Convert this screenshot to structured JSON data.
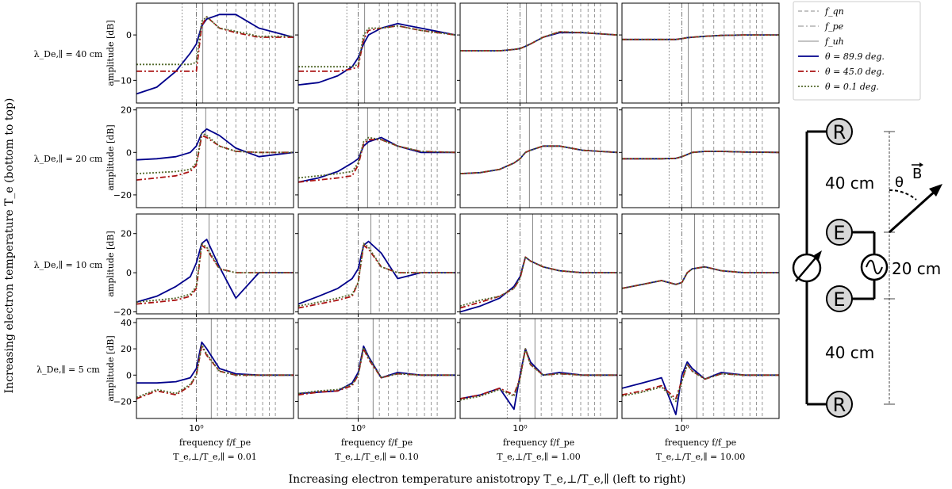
{
  "figure": {
    "left_label": "Increasing electron temperature T_e (bottom to top)",
    "bottom_label": "Increasing electron temperature anistotropy T_e,⊥/T_e,∥ (left to right)"
  },
  "axes": {
    "xlabel": "frequency f/f_pe",
    "ylabel": "amplitude [dB]",
    "xtick": "10^0",
    "xscale": "log",
    "xlim": [
      0.35,
      5.5
    ]
  },
  "columns": [
    {
      "label": "T_e,⊥/T_e,∥ = 0.01",
      "ratio": 0.01
    },
    {
      "label": "T_e,⊥/T_e,∥ = 0.10",
      "ratio": 0.1
    },
    {
      "label": "T_e,⊥/T_e,∥ = 1.00",
      "ratio": 1.0
    },
    {
      "label": "T_e,⊥/T_e,∥ = 10.00",
      "ratio": 10.0
    }
  ],
  "rows": [
    {
      "label": "λ_De,∥ = 40 cm",
      "ylim": [
        -15,
        7
      ],
      "yticks": [
        -10,
        0
      ]
    },
    {
      "label": "λ_De,∥ = 20 cm",
      "ylim": [
        -26,
        21
      ],
      "yticks": [
        -20,
        0,
        20
      ]
    },
    {
      "label": "λ_De,∥ = 10 cm",
      "ylim": [
        -21,
        30
      ],
      "yticks": [
        -20,
        0,
        20
      ]
    },
    {
      "label": "λ_De,∥ = 5 cm",
      "ylim": [
        -33,
        43
      ],
      "yticks": [
        -20,
        0,
        20,
        40
      ]
    }
  ],
  "legend": [
    {
      "label": "f_qn",
      "style": "dashed",
      "color": "#888888"
    },
    {
      "label": "f_pe",
      "style": "dashdot",
      "color": "#888888"
    },
    {
      "label": "f_uh",
      "style": "solid",
      "color": "#888888"
    },
    {
      "label": "θ = 89.9 deg.",
      "style": "solid",
      "color": "#00008b"
    },
    {
      "label": "θ = 45.0 deg.",
      "style": "dashdot",
      "color": "#aa1111"
    },
    {
      "label": "θ = 0.1 deg.",
      "style": "dotted",
      "color": "#556b2f"
    }
  ],
  "diagram": {
    "probe_r": "R",
    "probe_e": "E",
    "dist_outer_top": "40 cm",
    "dist_inner": "20 cm",
    "dist_outer_bottom": "40 cm",
    "angle": "θ",
    "field": "B"
  },
  "chart_data": {
    "type": "line",
    "title": "",
    "xlabel": "frequency f/f_pe",
    "ylabel": "amplitude [dB]",
    "xscale": "log",
    "grid": false,
    "reference_lines": {
      "f_pe": 1.0,
      "f_qn_column1": [
        0.78,
        1.45,
        1.7,
        2.0,
        2.4,
        2.8,
        3.2,
        3.6,
        4.0
      ],
      "f_qn_column2": [
        0.82,
        1.45,
        1.7,
        2.0,
        2.4,
        2.8,
        3.2,
        3.6,
        4.0
      ],
      "f_qn_column3": [
        0.8,
        1.45,
        1.75,
        2.1,
        2.5,
        2.9,
        3.3,
        3.7,
        4.1
      ],
      "f_qn_column4": [
        0.8,
        1.45,
        1.75,
        2.1,
        2.5,
        2.9,
        3.3,
        3.7,
        4.1
      ],
      "f_uh_row_40cm": 1.12,
      "f_uh_row_20cm": 1.18,
      "f_uh_row_10cm": 1.25,
      "f_uh_row_5cm": 1.3
    },
    "x": [
      0.35,
      0.5,
      0.7,
      0.9,
      1.0,
      1.1,
      1.2,
      1.5,
      2.0,
      3.0,
      5.5
    ],
    "panels": [
      {
        "row": "λ_De,∥ = 40 cm",
        "column": "T_e,⊥/T_e,∥ = 0.01",
        "series": [
          {
            "name": "θ = 89.9 deg.",
            "values": [
              -13,
              -11.5,
              -8,
              -4,
              -2,
              2,
              3.5,
              4.5,
              4.5,
              1.5,
              -0.5
            ]
          },
          {
            "name": "θ = 45.0 deg.",
            "values": [
              -8,
              -8,
              -8,
              -8,
              -8,
              2,
              4,
              1.5,
              0.5,
              -0.5,
              -0.5
            ]
          },
          {
            "name": "θ = 0.1 deg.",
            "values": [
              -6.5,
              -6.5,
              -6.5,
              -6.5,
              -6,
              3,
              4,
              1.5,
              0.8,
              -0.3,
              -0.3
            ]
          }
        ]
      },
      {
        "row": "λ_De,∥ = 40 cm",
        "column": "T_e,⊥/T_e,∥ = 0.10",
        "series": [
          {
            "name": "θ = 89.9 deg.",
            "values": [
              -11,
              -10.5,
              -9,
              -7,
              -5,
              -2,
              0,
              1.5,
              2.5,
              1.5,
              0
            ]
          },
          {
            "name": "θ = 45.0 deg.",
            "values": [
              -8,
              -8,
              -8,
              -7.5,
              -7,
              -1,
              1,
              1.5,
              2,
              1,
              0
            ]
          },
          {
            "name": "θ = 0.1 deg.",
            "values": [
              -7,
              -7,
              -7,
              -7,
              -6.5,
              0,
              1.5,
              1.5,
              2,
              1,
              0
            ]
          }
        ]
      },
      {
        "row": "λ_De,∥ = 40 cm",
        "column": "T_e,⊥/T_e,∥ = 1.00",
        "series": [
          {
            "name": "θ = 89.9 deg.",
            "values": [
              -3.5,
              -3.5,
              -3.5,
              -3.2,
              -3,
              -2.5,
              -2,
              -0.5,
              0.5,
              0.5,
              0
            ]
          },
          {
            "name": "θ = 45.0 deg.",
            "values": [
              -3.5,
              -3.5,
              -3.5,
              -3.2,
              -3,
              -2.5,
              -2,
              -0.5,
              0.7,
              0.5,
              0
            ]
          },
          {
            "name": "θ = 0.1 deg.",
            "values": [
              -3.5,
              -3.5,
              -3.5,
              -3.2,
              -3,
              -2.5,
              -2,
              -0.5,
              0.7,
              0.5,
              0
            ]
          }
        ]
      },
      {
        "row": "λ_De,∥ = 40 cm",
        "column": "T_e,⊥/T_e,∥ = 10.00",
        "series": [
          {
            "name": "θ = 89.9 deg.",
            "values": [
              -1,
              -1,
              -1,
              -1,
              -0.8,
              -0.6,
              -0.5,
              -0.3,
              -0.1,
              0,
              0
            ]
          },
          {
            "name": "θ = 45.0 deg.",
            "values": [
              -1,
              -1,
              -1,
              -1,
              -0.8,
              -0.6,
              -0.5,
              -0.3,
              -0.1,
              0,
              0
            ]
          },
          {
            "name": "θ = 0.1 deg.",
            "values": [
              -1,
              -1,
              -1,
              -1,
              -0.8,
              -0.6,
              -0.5,
              -0.3,
              -0.1,
              0,
              0
            ]
          }
        ]
      },
      {
        "row": "λ_De,∥ = 20 cm",
        "column": "T_e,⊥/T_e,∥ = 0.01",
        "series": [
          {
            "name": "θ = 89.9 deg.",
            "values": [
              -3.5,
              -3,
              -2,
              0,
              3,
              9,
              11,
              8,
              2,
              -2,
              0
            ]
          },
          {
            "name": "θ = 45.0 deg.",
            "values": [
              -13,
              -12,
              -11,
              -9,
              -6,
              8,
              7,
              3,
              0.5,
              0,
              0
            ]
          },
          {
            "name": "θ = 0.1 deg.",
            "values": [
              -10,
              -9.5,
              -9,
              -8,
              -5,
              9,
              8,
              3,
              0.5,
              0,
              0
            ]
          }
        ]
      },
      {
        "row": "λ_De,∥ = 20 cm",
        "column": "T_e,⊥/T_e,∥ = 0.10",
        "series": [
          {
            "name": "θ = 89.9 deg.",
            "values": [
              -14,
              -12,
              -9,
              -5,
              -3,
              3,
              5,
              7,
              3,
              0,
              0
            ]
          },
          {
            "name": "θ = 45.0 deg.",
            "values": [
              -14,
              -13,
              -12,
              -11,
              -6,
              4,
              6,
              6,
              3,
              0.5,
              0
            ]
          },
          {
            "name": "θ = 0.1 deg.",
            "values": [
              -12,
              -11,
              -10,
              -9,
              -5,
              5,
              7,
              6,
              3,
              0.5,
              0
            ]
          }
        ]
      },
      {
        "row": "λ_De,∥ = 20 cm",
        "column": "T_e,⊥/T_e,∥ = 1.00",
        "series": [
          {
            "name": "θ = 89.9 deg.",
            "values": [
              -10,
              -9.5,
              -8,
              -5,
              -3,
              0,
              1,
              3,
              3,
              1,
              0
            ]
          },
          {
            "name": "θ = 45.0 deg.",
            "values": [
              -10,
              -9.5,
              -8,
              -5,
              -3,
              0,
              1,
              3,
              3,
              1,
              0
            ]
          },
          {
            "name": "θ = 0.1 deg.",
            "values": [
              -10,
              -9.5,
              -8,
              -5,
              -3,
              0,
              1,
              3,
              3,
              1,
              0
            ]
          }
        ]
      },
      {
        "row": "λ_De,∥ = 20 cm",
        "column": "T_e,⊥/T_e,∥ = 10.00",
        "series": [
          {
            "name": "θ = 89.9 deg.",
            "values": [
              -3,
              -3,
              -3,
              -2.8,
              -2,
              -1,
              0,
              0.5,
              0.5,
              0.2,
              0
            ]
          },
          {
            "name": "θ = 45.0 deg.",
            "values": [
              -3,
              -3,
              -3,
              -2.8,
              -2,
              -1,
              0,
              0.5,
              0.5,
              0.2,
              0
            ]
          },
          {
            "name": "θ = 0.1 deg.",
            "values": [
              -3,
              -3,
              -3,
              -2.8,
              -2,
              -1,
              0,
              0.5,
              0.5,
              0.2,
              0
            ]
          }
        ]
      },
      {
        "row": "λ_De,∥ = 10 cm",
        "column": "T_e,⊥/T_e,∥ = 0.01",
        "series": [
          {
            "name": "θ = 89.9 deg.",
            "values": [
              -15,
              -12,
              -7,
              -2,
              5,
              15,
              17,
              3,
              -13,
              0,
              0
            ]
          },
          {
            "name": "θ = 45.0 deg.",
            "values": [
              -16,
              -15,
              -14,
              -12,
              -8,
              14,
              12,
              2,
              0,
              0,
              0
            ]
          },
          {
            "name": "θ = 0.1 deg.",
            "values": [
              -15,
              -14,
              -13,
              -11,
              -7,
              15,
              13,
              2,
              0,
              0,
              0
            ]
          }
        ]
      },
      {
        "row": "λ_De,∥ = 10 cm",
        "column": "T_e,⊥/T_e,∥ = 0.10",
        "series": [
          {
            "name": "θ = 89.9 deg.",
            "values": [
              -16,
              -12,
              -8,
              -3,
              2,
              14,
              16,
              10,
              -3,
              0,
              0
            ]
          },
          {
            "name": "θ = 45.0 deg.",
            "values": [
              -18,
              -16,
              -14,
              -12,
              -5,
              14,
              12,
              3,
              0,
              0,
              0
            ]
          },
          {
            "name": "θ = 0.1 deg.",
            "values": [
              -17,
              -15,
              -13,
              -11,
              -5,
              15,
              13,
              3,
              0,
              0,
              0
            ]
          }
        ]
      },
      {
        "row": "λ_De,∥ = 10 cm",
        "column": "T_e,⊥/T_e,∥ = 1.00",
        "series": [
          {
            "name": "θ = 89.9 deg.",
            "values": [
              -20,
              -17,
              -13,
              -7,
              -2,
              8,
              6,
              3,
              1,
              0,
              0
            ]
          },
          {
            "name": "θ = 45.0 deg.",
            "values": [
              -18,
              -15,
              -12,
              -8,
              -3,
              8,
              6,
              3,
              1,
              0,
              0
            ]
          },
          {
            "name": "θ = 0.1 deg.",
            "values": [
              -17,
              -14,
              -12,
              -8,
              -3,
              8,
              6,
              3,
              1,
              0,
              0
            ]
          }
        ]
      },
      {
        "row": "λ_De,∥ = 10 cm",
        "column": "T_e,⊥/T_e,∥ = 10.00",
        "series": [
          {
            "name": "θ = 89.9 deg.",
            "values": [
              -8,
              -6,
              -4,
              -6,
              -5,
              0,
              2,
              3,
              1,
              0,
              0
            ]
          },
          {
            "name": "θ = 45.0 deg.",
            "values": [
              -8,
              -6,
              -4,
              -6,
              -5,
              0,
              2,
              3,
              1,
              0,
              0
            ]
          },
          {
            "name": "θ = 0.1 deg.",
            "values": [
              -8,
              -6,
              -4,
              -6,
              -5,
              0,
              2,
              3,
              1,
              0,
              0
            ]
          }
        ]
      },
      {
        "row": "λ_De,∥ = 5 cm",
        "column": "T_e,⊥/T_e,∥ = 0.01",
        "series": [
          {
            "name": "θ = 89.9 deg.",
            "values": [
              -6,
              -6,
              -5,
              -2,
              5,
              25,
              20,
              5,
              1,
              0,
              0
            ]
          },
          {
            "name": "θ = 45.0 deg.",
            "values": [
              -18,
              -12,
              -15,
              -8,
              0,
              22,
              15,
              3,
              0,
              0,
              0
            ]
          },
          {
            "name": "θ = 0.1 deg.",
            "values": [
              -17,
              -11,
              -14,
              -7,
              0,
              23,
              16,
              3,
              0,
              0,
              0
            ]
          }
        ]
      },
      {
        "row": "λ_De,∥ = 5 cm",
        "column": "T_e,⊥/T_e,∥ = 0.10",
        "series": [
          {
            "name": "θ = 89.9 deg.",
            "values": [
              -14,
              -13,
              -12,
              -6,
              2,
              22,
              14,
              -2,
              2,
              0,
              0
            ]
          },
          {
            "name": "θ = 45.0 deg.",
            "values": [
              -15,
              -13,
              -12,
              -8,
              0,
              20,
              12,
              -2,
              1,
              0,
              0
            ]
          },
          {
            "name": "θ = 0.1 deg.",
            "values": [
              -14,
              -12,
              -11,
              -7,
              0,
              21,
              13,
              -2,
              1,
              0,
              0
            ]
          }
        ]
      },
      {
        "row": "λ_De,∥ = 5 cm",
        "column": "T_e,⊥/T_e,∥ = 1.00",
        "series": [
          {
            "name": "θ = 89.9 deg.",
            "values": [
              -18,
              -15,
              -10,
              -26,
              0,
              20,
              10,
              0,
              2,
              0,
              0
            ]
          },
          {
            "name": "θ = 45.0 deg.",
            "values": [
              -18,
              -15,
              -10,
              -15,
              -2,
              20,
              8,
              0,
              1,
              0,
              0
            ]
          },
          {
            "name": "θ = 0.1 deg.",
            "values": [
              -19,
              -16,
              -11,
              -16,
              -3,
              20,
              8,
              0,
              1,
              0,
              0
            ]
          }
        ]
      },
      {
        "row": "λ_De,∥ = 5 cm",
        "column": "T_e,⊥/T_e,∥ = 10.00",
        "series": [
          {
            "name": "θ = 89.9 deg.",
            "values": [
              -10,
              -6,
              -2,
              -30,
              0,
              10,
              5,
              -3,
              2,
              0,
              0
            ]
          },
          {
            "name": "θ = 45.0 deg.",
            "values": [
              -15,
              -12,
              -8,
              -18,
              -4,
              8,
              3,
              -3,
              1,
              0,
              0
            ]
          },
          {
            "name": "θ = 0.1 deg.",
            "values": [
              -16,
              -13,
              -9,
              -20,
              -5,
              8,
              3,
              -3,
              1,
              0,
              0
            ]
          }
        ]
      }
    ]
  }
}
